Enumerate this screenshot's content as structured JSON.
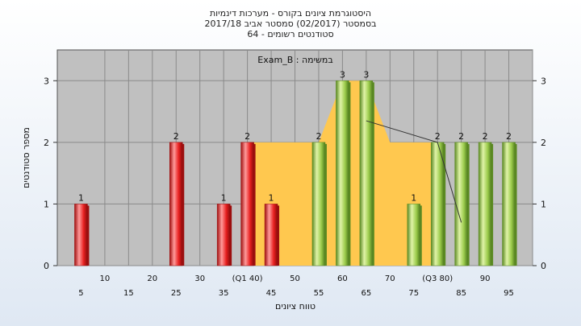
{
  "chart_data": {
    "type": "bar",
    "title_lines": [
      "היסטוגרמת ציונים בקורס - מערכות דינמיות",
      "בסמסטר  (02/2017)  סמסטר אביב 2017/18",
      "סטודנטים רשומים - 64"
    ],
    "subtitle": "במשימה : Exam_B",
    "xlabel": "טווח ציונים",
    "ylabel": "מספר סטודנטים",
    "ylim": [
      0,
      3.5
    ],
    "yticks": [
      0,
      1,
      2,
      3
    ],
    "grid": true,
    "x_ticks": [
      {
        "x": 5,
        "label": "5",
        "row": "bottom"
      },
      {
        "x": 10,
        "label": "10",
        "row": "top"
      },
      {
        "x": 15,
        "label": "15",
        "row": "bottom"
      },
      {
        "x": 20,
        "label": "20",
        "row": "top"
      },
      {
        "x": 25,
        "label": "25",
        "row": "bottom"
      },
      {
        "x": 30,
        "label": "30",
        "row": "top"
      },
      {
        "x": 35,
        "label": "35",
        "row": "bottom"
      },
      {
        "x": 40,
        "label": "(Q1 40)",
        "row": "top"
      },
      {
        "x": 45,
        "label": "45",
        "row": "bottom"
      },
      {
        "x": 50,
        "label": "50",
        "row": "top"
      },
      {
        "x": 55,
        "label": "55",
        "row": "bottom"
      },
      {
        "x": 60,
        "label": "60",
        "row": "top"
      },
      {
        "x": 65,
        "label": "65",
        "row": "bottom"
      },
      {
        "x": 70,
        "label": "70",
        "row": "top"
      },
      {
        "x": 75,
        "label": "75",
        "row": "bottom"
      },
      {
        "x": 80,
        "label": "(Q3 80)",
        "row": "top"
      },
      {
        "x": 85,
        "label": "85",
        "row": "bottom"
      },
      {
        "x": 90,
        "label": "90",
        "row": "top"
      },
      {
        "x": 95,
        "label": "95",
        "row": "bottom"
      }
    ],
    "bars": [
      {
        "x": 5,
        "value": 1,
        "color": "red"
      },
      {
        "x": 25,
        "value": 2,
        "color": "red"
      },
      {
        "x": 35,
        "value": 1,
        "color": "red"
      },
      {
        "x": 40,
        "value": 2,
        "color": "red"
      },
      {
        "x": 45,
        "value": 1,
        "color": "red"
      },
      {
        "x": 55,
        "value": 2,
        "color": "green"
      },
      {
        "x": 60,
        "value": 3,
        "color": "green"
      },
      {
        "x": 65,
        "value": 3,
        "color": "green"
      },
      {
        "x": 75,
        "value": 1,
        "color": "green"
      },
      {
        "x": 80,
        "value": 2,
        "color": "green"
      },
      {
        "x": 85,
        "value": 2,
        "color": "green"
      },
      {
        "x": 90,
        "value": 2,
        "color": "green"
      },
      {
        "x": 95,
        "value": 2,
        "color": "green"
      }
    ],
    "box_area": {
      "color": "#ffc84f",
      "points": [
        [
          40,
          2
        ],
        [
          55,
          2
        ],
        [
          60,
          3
        ],
        [
          65,
          3
        ],
        [
          70,
          2
        ],
        [
          80,
          2
        ]
      ]
    },
    "whisker_line": [
      [
        65,
        2.35
      ],
      [
        80,
        2
      ],
      [
        85,
        0.7
      ]
    ],
    "colors": {
      "plot_bg": "#c0c0c0",
      "grid": "#8a8a8a",
      "red_light": "#ff8a8a",
      "red_mid": "#ee2222",
      "red_dark": "#9d0f0f",
      "green_light": "#d8ef9a",
      "green_mid": "#9ccc4c",
      "green_dark": "#5b8a22"
    }
  }
}
